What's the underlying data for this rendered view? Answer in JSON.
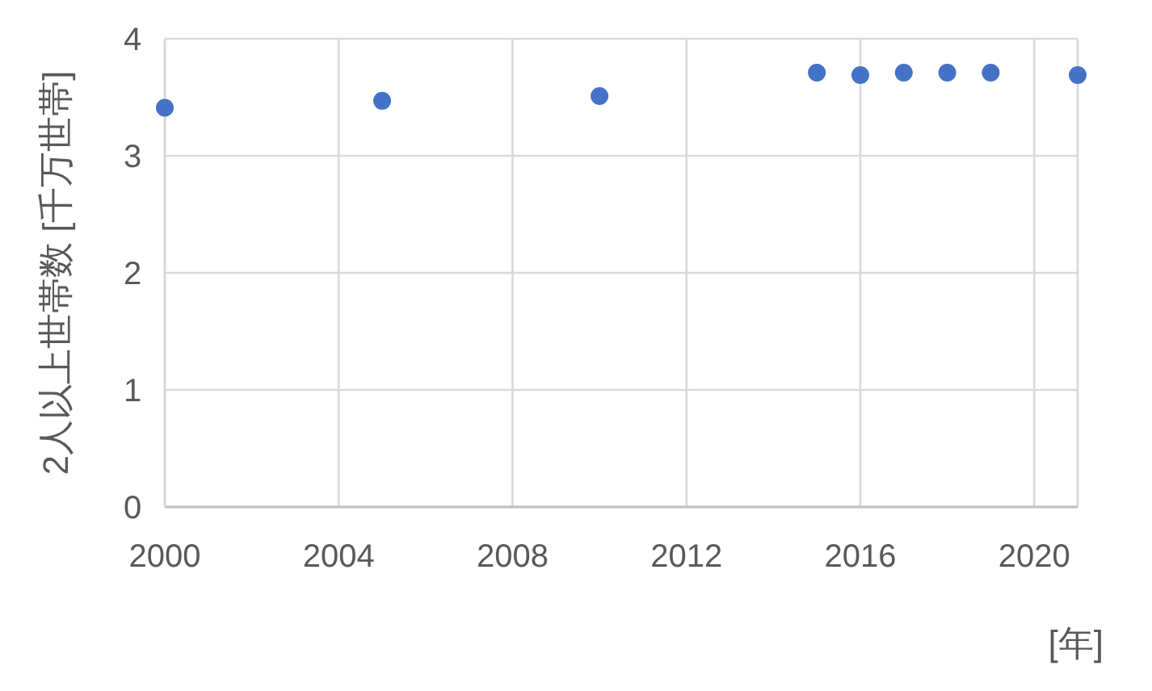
{
  "chart_data": {
    "type": "scatter",
    "xlabel": "[年]",
    "ylabel": "2人以上世帯数 [千万世帯]",
    "x": [
      2000,
      2005,
      2010,
      2015,
      2016,
      2017,
      2018,
      2019,
      2021
    ],
    "series": [
      {
        "color": "#4472c4",
        "values": [
          3.41,
          3.47,
          3.51,
          3.71,
          3.69,
          3.71,
          3.71,
          3.71,
          3.69
        ]
      }
    ],
    "xlim": [
      2000,
      2021
    ],
    "xticks": [
      2000,
      2004,
      2008,
      2012,
      2016,
      2020
    ],
    "ylim": [
      0,
      4
    ],
    "yticks": [
      0,
      1,
      2,
      3,
      4
    ],
    "grid": true,
    "marker": "circle"
  }
}
